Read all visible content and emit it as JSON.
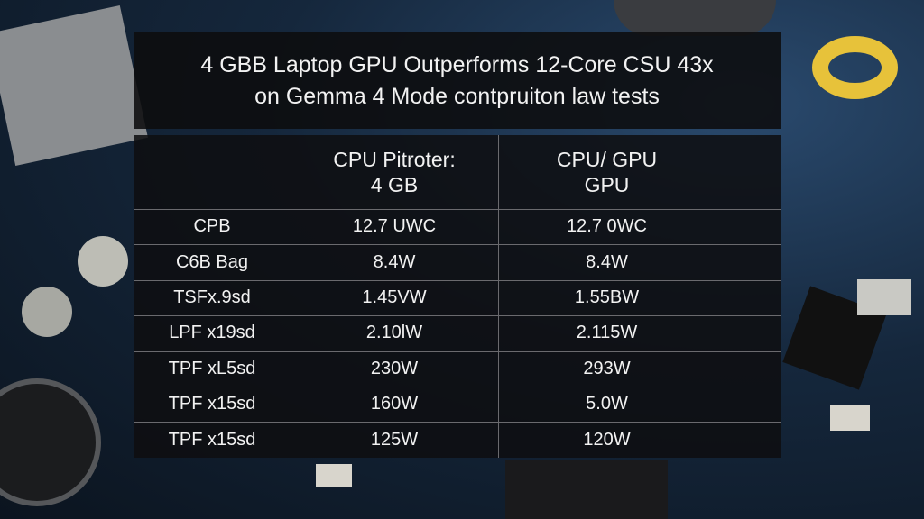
{
  "title": [
    "4 GBB Laptop GPU Outperforms 12-Core CSU 43x",
    "on Gemma 4 Mode contpruiton law tests"
  ],
  "table": {
    "header": [
      [
        "CPU Pitroter:",
        "4 GB"
      ],
      [
        "CPU/ GPU",
        "GPU"
      ]
    ],
    "rows": [
      [
        "CPB",
        "12.7 UWC",
        "12.7 0WC"
      ],
      [
        "C6B Bag",
        "8.4W",
        "8.4W"
      ],
      [
        "TSFx.9sd",
        "1.45VW",
        "1.55BW"
      ],
      [
        "LPF x19sd",
        "2.10lW",
        "2.115W"
      ],
      [
        "TPF xL5sd",
        "230W",
        "293W"
      ],
      [
        "TPF x15sd",
        "160W",
        "5.0W"
      ],
      [
        "TPF x15sd",
        "125W",
        "120W"
      ]
    ]
  }
}
